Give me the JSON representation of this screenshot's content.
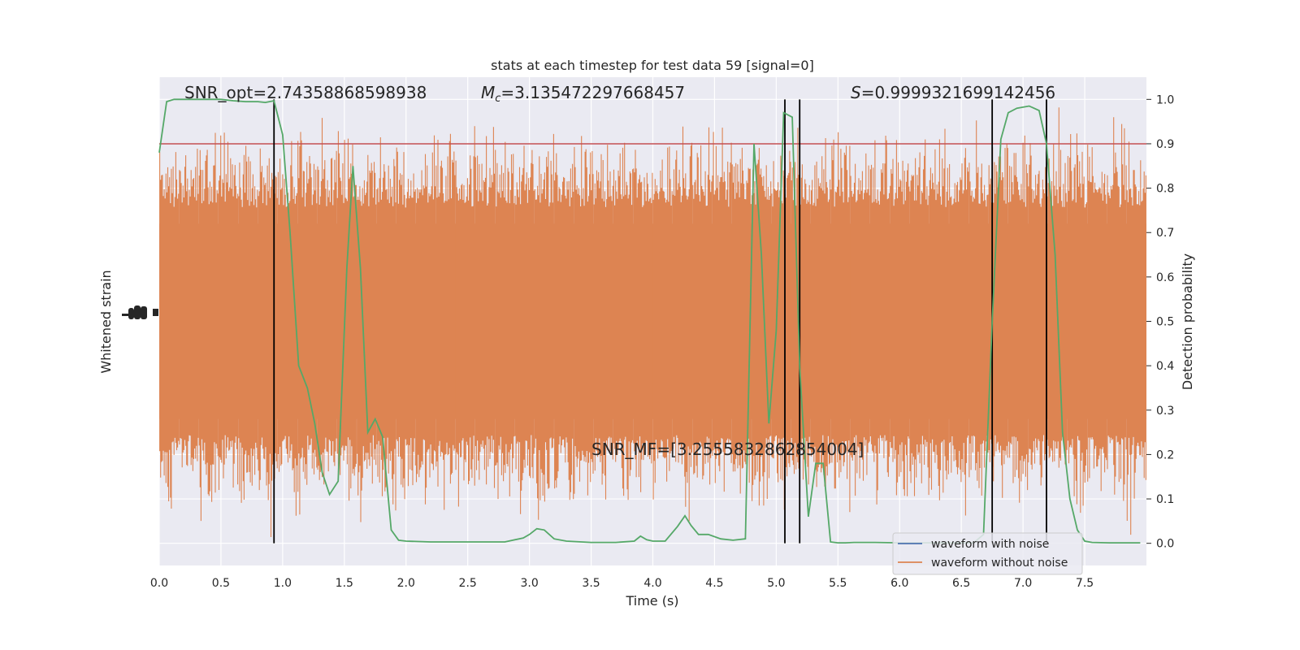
{
  "chart_data": {
    "type": "line",
    "title": "stats at each timestep for test data 59 [signal=0]",
    "xlabel": "Time (s)",
    "ylabel_left": "Whitened strain",
    "ylabel_right": "Detection probability",
    "xlim": [
      0.0,
      8.0
    ],
    "ylim_right": [
      -0.05,
      1.05
    ],
    "grid": true,
    "legend_position": "bottom-right",
    "x_ticks": [
      "0.0",
      "0.5",
      "1.0",
      "1.5",
      "2.0",
      "2.5",
      "3.0",
      "3.5",
      "4.0",
      "4.5",
      "5.0",
      "5.5",
      "6.0",
      "6.5",
      "7.0",
      "7.5"
    ],
    "y_ticks_right": [
      "0.0",
      "0.1",
      "0.2",
      "0.3",
      "0.4",
      "0.5",
      "0.6",
      "0.7",
      "0.8",
      "0.9",
      "1.0"
    ],
    "annotations": {
      "snr_opt": "SNR_opt=2.74358868598938",
      "mc_symbol": "M",
      "mc_sub": "c",
      "mc_value": "=3.135472297668457",
      "s_symbol": "S",
      "s_value": "=0.9999321699142456",
      "snr_mf": "SNR_MF=[3.2555832862854004]"
    },
    "threshold": 0.9,
    "vertical_lines_x": [
      0.93,
      5.07,
      5.19,
      6.75,
      7.19
    ],
    "series": [
      {
        "name": "waveform with noise",
        "color": "#4c72b0"
      },
      {
        "name": "waveform without noise",
        "color": "#dd8452"
      }
    ],
    "probability": {
      "color": "#55a868",
      "x": [
        0.0,
        0.06,
        0.12,
        0.2,
        0.3,
        0.4,
        0.5,
        0.6,
        0.7,
        0.8,
        0.86,
        0.93,
        1.0,
        1.06,
        1.13,
        1.2,
        1.26,
        1.32,
        1.38,
        1.45,
        1.52,
        1.57,
        1.63,
        1.69,
        1.75,
        1.81,
        1.88,
        1.94,
        2.0,
        2.2,
        2.4,
        2.6,
        2.8,
        2.95,
        3.0,
        3.06,
        3.12,
        3.2,
        3.3,
        3.5,
        3.7,
        3.85,
        3.9,
        3.95,
        4.0,
        4.1,
        4.2,
        4.26,
        4.31,
        4.37,
        4.45,
        4.55,
        4.65,
        4.75,
        4.82,
        4.88,
        4.94,
        5.0,
        5.06,
        5.13,
        5.19,
        5.26,
        5.32,
        5.38,
        5.44,
        5.5,
        5.56,
        5.63,
        5.8,
        6.0,
        6.2,
        6.4,
        6.6,
        6.68,
        6.75,
        6.82,
        6.88,
        6.95,
        7.05,
        7.13,
        7.19,
        7.26,
        7.32,
        7.38,
        7.44,
        7.5,
        7.56,
        7.7,
        7.85,
        7.95
      ],
      "y": [
        0.88,
        0.995,
        1.0,
        1.0,
        1.0,
        1.0,
        1.0,
        0.997,
        0.995,
        0.995,
        0.993,
        0.997,
        0.92,
        0.7,
        0.4,
        0.35,
        0.27,
        0.16,
        0.11,
        0.14,
        0.62,
        0.85,
        0.62,
        0.25,
        0.28,
        0.24,
        0.03,
        0.007,
        0.005,
        0.003,
        0.003,
        0.003,
        0.003,
        0.012,
        0.02,
        0.033,
        0.03,
        0.01,
        0.005,
        0.002,
        0.002,
        0.005,
        0.016,
        0.008,
        0.005,
        0.005,
        0.038,
        0.062,
        0.04,
        0.02,
        0.02,
        0.01,
        0.007,
        0.01,
        0.9,
        0.65,
        0.27,
        0.48,
        0.97,
        0.96,
        0.4,
        0.06,
        0.18,
        0.18,
        0.003,
        0.001,
        0.001,
        0.002,
        0.002,
        0.001,
        0.001,
        0.001,
        0.001,
        0.02,
        0.5,
        0.91,
        0.97,
        0.98,
        0.985,
        0.975,
        0.9,
        0.65,
        0.25,
        0.1,
        0.03,
        0.005,
        0.002,
        0.001,
        0.001,
        0.001
      ]
    }
  }
}
